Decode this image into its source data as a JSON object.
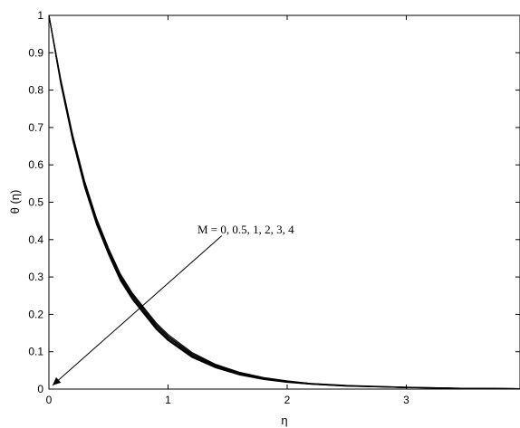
{
  "chart_data": {
    "type": "line",
    "xlabel": "η",
    "ylabel": "θ (η)",
    "xlim": [
      0,
      4
    ],
    "ylim": [
      0,
      1
    ],
    "xticks": [
      0,
      1,
      2,
      3
    ],
    "yticks": [
      0,
      0.1,
      0.2,
      0.3,
      0.4,
      0.5,
      0.6,
      0.7,
      0.8,
      0.9,
      1
    ],
    "x_tick_labels": [
      "0",
      "1",
      "2",
      "3"
    ],
    "y_tick_labels": [
      "0",
      "0.1",
      "0.2",
      "0.3",
      "0.4",
      "0.5",
      "0.6",
      "0.7",
      "0.8",
      "0.9",
      "1"
    ],
    "grid": false,
    "annotation": {
      "text": "M = 0, 0.5, 1, 2, 3, 4",
      "arrow_from": [
        1.45,
        0.41
      ],
      "arrow_to": [
        0.03,
        0.01
      ]
    },
    "x": [
      0,
      0.1,
      0.2,
      0.3,
      0.4,
      0.5,
      0.6,
      0.7,
      0.8,
      0.9,
      1.0,
      1.2,
      1.4,
      1.6,
      1.8,
      2.0,
      2.2,
      2.5,
      3.0,
      3.5,
      4.0
    ],
    "series": [
      {
        "values": [
          1,
          0.815,
          0.665,
          0.54,
          0.44,
          0.36,
          0.29,
          0.24,
          0.2,
          0.16,
          0.13,
          0.085,
          0.057,
          0.038,
          0.026,
          0.018,
          0.013,
          0.008,
          0.004,
          0.002,
          0.001
        ]
      },
      {
        "values": [
          1,
          0.817,
          0.667,
          0.542,
          0.442,
          0.362,
          0.293,
          0.242,
          0.202,
          0.162,
          0.132,
          0.087,
          0.058,
          0.039,
          0.027,
          0.019,
          0.013,
          0.008,
          0.004,
          0.002,
          0.001
        ]
      },
      {
        "values": [
          1,
          0.819,
          0.669,
          0.545,
          0.445,
          0.365,
          0.296,
          0.245,
          0.205,
          0.165,
          0.135,
          0.089,
          0.06,
          0.04,
          0.028,
          0.019,
          0.014,
          0.009,
          0.004,
          0.002,
          0.001
        ]
      },
      {
        "values": [
          1,
          0.822,
          0.673,
          0.549,
          0.449,
          0.369,
          0.3,
          0.249,
          0.209,
          0.169,
          0.139,
          0.092,
          0.062,
          0.042,
          0.029,
          0.02,
          0.014,
          0.009,
          0.004,
          0.002,
          0.001
        ]
      },
      {
        "values": [
          1,
          0.825,
          0.676,
          0.553,
          0.453,
          0.373,
          0.304,
          0.253,
          0.213,
          0.173,
          0.142,
          0.095,
          0.064,
          0.044,
          0.03,
          0.021,
          0.015,
          0.009,
          0.005,
          0.002,
          0.001
        ]
      },
      {
        "values": [
          1,
          0.828,
          0.68,
          0.557,
          0.457,
          0.377,
          0.308,
          0.257,
          0.217,
          0.177,
          0.146,
          0.098,
          0.066,
          0.045,
          0.031,
          0.022,
          0.015,
          0.01,
          0.005,
          0.002,
          0.001
        ]
      }
    ]
  }
}
